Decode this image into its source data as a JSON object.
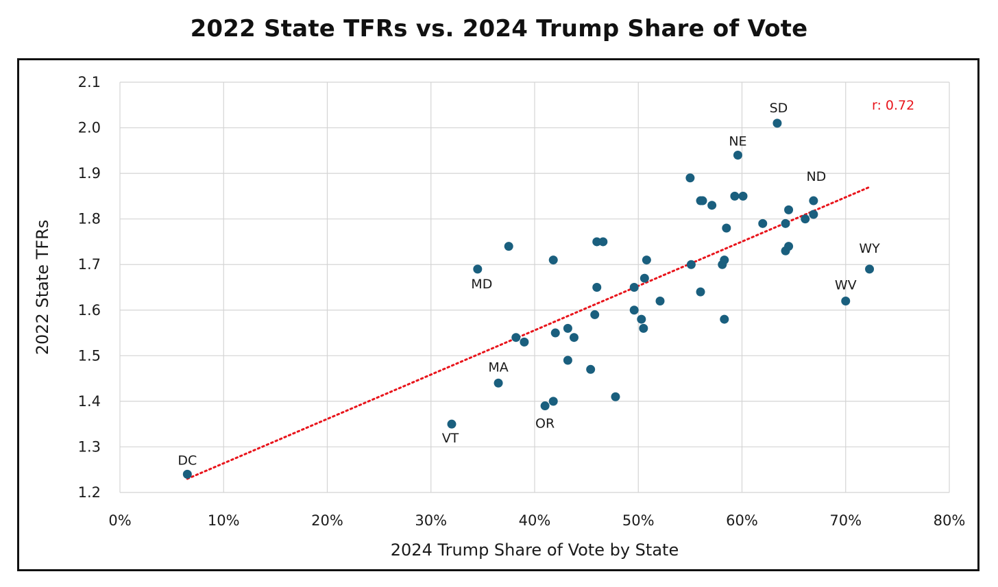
{
  "chart_data": {
    "type": "scatter",
    "title": "2022 State TFRs vs. 2024 Trump Share of Vote",
    "xlabel": "2024 Trump Share of Vote by State",
    "ylabel": "2022 State TFRs",
    "xlim": [
      0,
      80
    ],
    "ylim": [
      1.2,
      2.1
    ],
    "x_ticks": [
      "0%",
      "10%",
      "20%",
      "30%",
      "40%",
      "50%",
      "60%",
      "70%",
      "80%"
    ],
    "y_ticks": [
      "1.2",
      "1.3",
      "1.4",
      "1.5",
      "1.6",
      "1.7",
      "1.8",
      "1.9",
      "2.0",
      "2.1"
    ],
    "grid": true,
    "annotation": "r: 0.72",
    "annotation_color": "#e8141b",
    "point_color": "#1a5f7e",
    "trendline_color": "#e8141b",
    "trendline": {
      "x": [
        6.5,
        72.3
      ],
      "y": [
        1.23,
        1.87
      ]
    },
    "points": [
      {
        "x": 6.5,
        "y": 1.24,
        "label": "DC"
      },
      {
        "x": 32.0,
        "y": 1.35,
        "label": "VT"
      },
      {
        "x": 34.5,
        "y": 1.69,
        "label": "MD"
      },
      {
        "x": 36.5,
        "y": 1.44,
        "label": "MA"
      },
      {
        "x": 37.5,
        "y": 1.74,
        "label": ""
      },
      {
        "x": 38.2,
        "y": 1.54,
        "label": ""
      },
      {
        "x": 39.0,
        "y": 1.53,
        "label": ""
      },
      {
        "x": 41.0,
        "y": 1.39,
        "label": "OR"
      },
      {
        "x": 41.8,
        "y": 1.4,
        "label": ""
      },
      {
        "x": 41.8,
        "y": 1.71,
        "label": ""
      },
      {
        "x": 42.0,
        "y": 1.55,
        "label": ""
      },
      {
        "x": 43.2,
        "y": 1.56,
        "label": ""
      },
      {
        "x": 43.2,
        "y": 1.49,
        "label": ""
      },
      {
        "x": 43.8,
        "y": 1.54,
        "label": ""
      },
      {
        "x": 45.4,
        "y": 1.47,
        "label": ""
      },
      {
        "x": 45.8,
        "y": 1.59,
        "label": ""
      },
      {
        "x": 46.0,
        "y": 1.65,
        "label": ""
      },
      {
        "x": 46.0,
        "y": 1.75,
        "label": ""
      },
      {
        "x": 46.6,
        "y": 1.75,
        "label": ""
      },
      {
        "x": 47.8,
        "y": 1.41,
        "label": ""
      },
      {
        "x": 49.6,
        "y": 1.65,
        "label": ""
      },
      {
        "x": 49.6,
        "y": 1.6,
        "label": ""
      },
      {
        "x": 50.3,
        "y": 1.58,
        "label": ""
      },
      {
        "x": 50.5,
        "y": 1.56,
        "label": ""
      },
      {
        "x": 50.6,
        "y": 1.67,
        "label": ""
      },
      {
        "x": 50.8,
        "y": 1.71,
        "label": ""
      },
      {
        "x": 52.1,
        "y": 1.62,
        "label": ""
      },
      {
        "x": 55.0,
        "y": 1.89,
        "label": ""
      },
      {
        "x": 55.1,
        "y": 1.7,
        "label": ""
      },
      {
        "x": 56.0,
        "y": 1.84,
        "label": ""
      },
      {
        "x": 56.2,
        "y": 1.84,
        "label": ""
      },
      {
        "x": 56.0,
        "y": 1.64,
        "label": ""
      },
      {
        "x": 57.1,
        "y": 1.83,
        "label": ""
      },
      {
        "x": 58.1,
        "y": 1.7,
        "label": ""
      },
      {
        "x": 58.3,
        "y": 1.71,
        "label": ""
      },
      {
        "x": 58.3,
        "y": 1.58,
        "label": ""
      },
      {
        "x": 58.5,
        "y": 1.78,
        "label": ""
      },
      {
        "x": 59.3,
        "y": 1.85,
        "label": ""
      },
      {
        "x": 59.6,
        "y": 1.94,
        "label": "NE"
      },
      {
        "x": 60.1,
        "y": 1.85,
        "label": ""
      },
      {
        "x": 62.0,
        "y": 1.79,
        "label": ""
      },
      {
        "x": 63.4,
        "y": 2.01,
        "label": "SD"
      },
      {
        "x": 64.2,
        "y": 1.79,
        "label": ""
      },
      {
        "x": 64.2,
        "y": 1.73,
        "label": ""
      },
      {
        "x": 64.5,
        "y": 1.82,
        "label": ""
      },
      {
        "x": 64.5,
        "y": 1.74,
        "label": ""
      },
      {
        "x": 66.1,
        "y": 1.8,
        "label": ""
      },
      {
        "x": 66.9,
        "y": 1.84,
        "label": "ND"
      },
      {
        "x": 66.9,
        "y": 1.81,
        "label": ""
      },
      {
        "x": 70.0,
        "y": 1.62,
        "label": "WV"
      },
      {
        "x": 72.3,
        "y": 1.69,
        "label": "WY"
      }
    ]
  }
}
